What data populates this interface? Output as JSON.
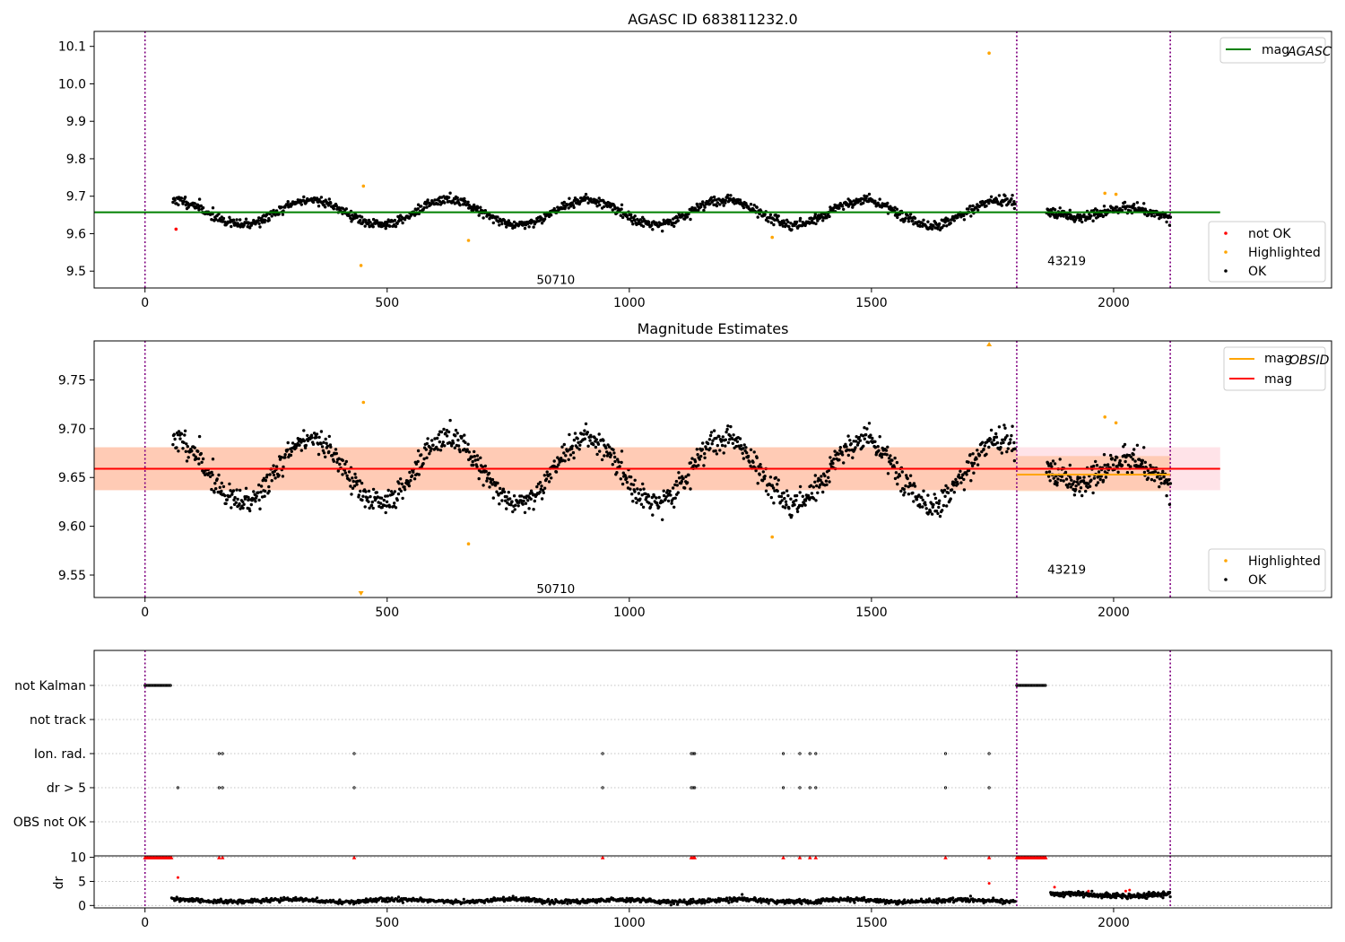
{
  "chart_data": [
    {
      "type": "scatter",
      "title": "AGASC ID 683811232.0",
      "xlim": [
        -105,
        2450
      ],
      "ylim": [
        9.455,
        10.14
      ],
      "xticks": [
        0,
        500,
        1000,
        1500,
        2000
      ],
      "yticks": [
        9.5,
        9.6,
        9.7,
        9.8,
        9.9,
        10.0,
        10.1
      ],
      "ytick_labels": [
        "9.5",
        "9.6",
        "9.7",
        "9.8",
        "9.9",
        "10.0",
        "10.1"
      ],
      "obs_boundaries": [
        0,
        1800,
        2117
      ],
      "obsid_labels": [
        {
          "text": "50710",
          "x": 900,
          "y": 9.48
        },
        {
          "text": "43219",
          "x": 1955,
          "y": 9.53
        }
      ],
      "lines": [
        {
          "name": "mag_AGASC",
          "value": 9.657,
          "x_range": [
            -105,
            2220
          ],
          "color": "#008000"
        }
      ],
      "ok_model": {
        "base": 9.657,
        "segments": [
          {
            "x0": 58,
            "x1": 1797,
            "n": 1260,
            "amp": 0.033,
            "period": 285,
            "phase": 0.3,
            "noise": 0.012,
            "seed": 11
          },
          {
            "x0": 1862,
            "x1": 2117,
            "n": 210,
            "amp": 0.012,
            "period": 200,
            "phase": 0.6,
            "noise": 0.012,
            "seed": 23
          }
        ]
      },
      "highlighted": [
        [
          446,
          9.515
        ],
        [
          451,
          9.727
        ],
        [
          668,
          9.582
        ],
        [
          1295,
          9.59
        ],
        [
          1743,
          10.082
        ],
        [
          1982,
          9.708
        ],
        [
          2005,
          9.705
        ]
      ],
      "not_ok": [
        [
          64,
          9.612
        ]
      ],
      "legend_top": [
        {
          "label": "mag",
          "sub": "AGASC",
          "color": "#008000"
        }
      ],
      "legend_bottom": [
        {
          "label": "not OK",
          "color": "#ff0000"
        },
        {
          "label": "Highlighted",
          "color": "#ffa500"
        },
        {
          "label": "OK",
          "color": "#000000"
        }
      ]
    },
    {
      "type": "scatter",
      "title": "Magnitude Estimates",
      "xlim": [
        -105,
        2450
      ],
      "ylim": [
        9.527,
        9.79
      ],
      "xticks": [
        0,
        500,
        1000,
        1500,
        2000
      ],
      "yticks": [
        9.55,
        9.6,
        9.65,
        9.7,
        9.75
      ],
      "ytick_labels": [
        "9.55",
        "9.60",
        "9.65",
        "9.70",
        "9.75"
      ],
      "obs_boundaries": [
        0,
        1800,
        2117
      ],
      "obsid_labels": [
        {
          "text": "50710",
          "x": 900,
          "y": 9.537
        },
        {
          "text": "43219",
          "x": 1955,
          "y": 9.557
        }
      ],
      "bands": [
        {
          "name": "mag",
          "x_range": [
            -105,
            2220
          ],
          "y_range": [
            9.637,
            9.681
          ],
          "color": "#ffc0cb",
          "opacity": 0.45
        },
        {
          "name": "mag_OBSID 50710",
          "x_range": [
            -105,
            1800
          ],
          "y_range": [
            9.637,
            9.681
          ],
          "color": "#ffa560",
          "opacity": 0.38
        },
        {
          "name": "mag_OBSID 43219",
          "x_range": [
            1800,
            2117
          ],
          "y_range": [
            9.636,
            9.672
          ],
          "color": "#ffa560",
          "opacity": 0.38
        }
      ],
      "lines": [
        {
          "name": "mag_OBSID",
          "value": 9.659,
          "x_range": [
            -105,
            1800
          ],
          "color": "#ffa500"
        },
        {
          "name": "mag_OBSID",
          "value": 9.653,
          "x_range": [
            1800,
            2117
          ],
          "color": "#ffa500"
        },
        {
          "name": "mag",
          "value": 9.659,
          "x_range": [
            -105,
            2220
          ],
          "color": "#ff0000"
        }
      ],
      "ok_model": {
        "base": 9.657,
        "segments": [
          {
            "x0": 58,
            "x1": 1797,
            "n": 1260,
            "amp": 0.033,
            "period": 285,
            "phase": 0.3,
            "noise": 0.012,
            "seed": 11
          },
          {
            "x0": 1862,
            "x1": 2117,
            "n": 210,
            "amp": 0.012,
            "period": 200,
            "phase": 0.6,
            "noise": 0.012,
            "seed": 23
          }
        ]
      },
      "highlighted": [
        [
          451,
          9.727
        ],
        [
          668,
          9.582
        ],
        [
          1295,
          9.589
        ],
        [
          1982,
          9.712
        ],
        [
          2005,
          9.706
        ]
      ],
      "clipped_high": [
        1743
      ],
      "clipped_low": [
        446
      ],
      "legend_top": [
        {
          "label": "mag",
          "sub": "OBSID",
          "color": "#ffa500"
        },
        {
          "label": "mag",
          "sub": "",
          "color": "#ff0000"
        }
      ],
      "legend_bottom": [
        {
          "label": "Highlighted",
          "color": "#ffa500"
        },
        {
          "label": "OK",
          "color": "#000000"
        }
      ]
    },
    {
      "type": "scatter",
      "title": "",
      "xlim": [
        -105,
        2450
      ],
      "xticks": [
        0,
        500,
        1000,
        1500,
        2000
      ],
      "obs_boundaries": [
        0,
        1800,
        2117
      ],
      "flag_rows": [
        "not Kalman",
        "not track",
        "Ion. rad.",
        "dr > 5",
        "OBS not OK"
      ],
      "flags": {
        "not Kalman": [
          [
            0,
            55
          ],
          [
            1800,
            1860
          ]
        ],
        "not track": [],
        "Ion. rad.": [
          153,
          160,
          432,
          945,
          1128,
          1132,
          1135,
          1318,
          1352,
          1373,
          1385,
          1653,
          1743
        ],
        "dr > 5": [
          68,
          153,
          160,
          432,
          945,
          1128,
          1132,
          1135,
          1318,
          1352,
          1373,
          1385,
          1653,
          1743
        ],
        "OBS not OK": []
      },
      "dr": {
        "ylim": [
          -0.5,
          10.3
        ],
        "yticks": [
          0,
          5,
          10
        ],
        "ytick_labels": [
          "0",
          "5",
          "10"
        ],
        "ylabel": "dr",
        "base_segments": [
          {
            "x0": 55,
            "x1": 1797,
            "n": 1150,
            "level": 1.0,
            "noise": 0.38,
            "seed": 31
          },
          {
            "x0": 1870,
            "x1": 2117,
            "n": 230,
            "level": 2.2,
            "noise": 0.45,
            "seed": 41
          }
        ],
        "clipped_at_10": [
          [
            0,
            55
          ],
          [
            1800,
            1860
          ]
        ],
        "clipped_points": [
          153,
          160,
          432,
          945,
          1128,
          1132,
          1135,
          1318,
          1352,
          1373,
          1385,
          1653,
          1743
        ],
        "red_points": [
          [
            68,
            5.8
          ],
          [
            1743,
            4.6
          ],
          [
            1878,
            3.8
          ],
          [
            1948,
            3.0
          ],
          [
            2025,
            3.0
          ],
          [
            2033,
            3.2
          ]
        ],
        "extra_points": [
          [
            1233,
            2.3
          ]
        ]
      }
    }
  ]
}
